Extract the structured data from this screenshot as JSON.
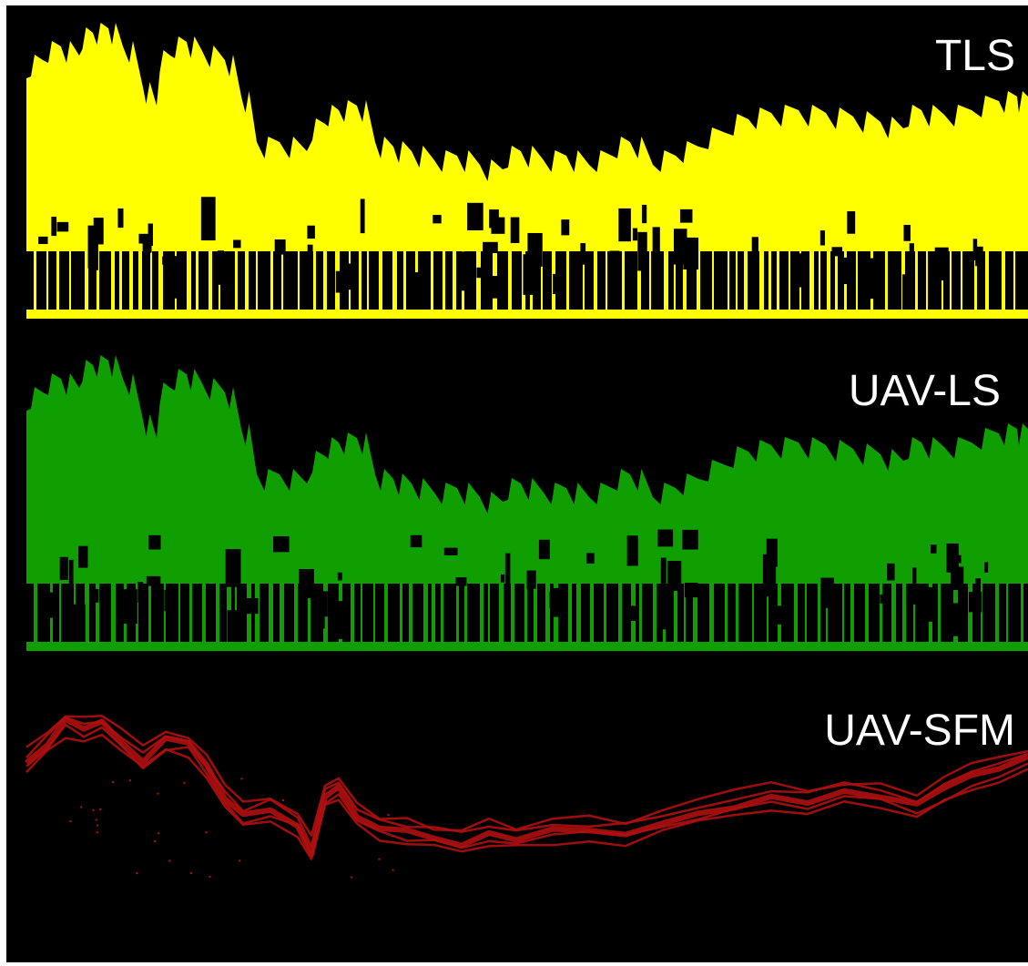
{
  "figure": {
    "background": "#000000",
    "panels": [
      {
        "id": "tls",
        "label": "TLS",
        "color": "#ffff00"
      },
      {
        "id": "uavls",
        "label": "UAV-LS",
        "color": "#109f00"
      },
      {
        "id": "sfm",
        "label": "UAV-SFM",
        "color": "#b01010"
      }
    ]
  }
}
